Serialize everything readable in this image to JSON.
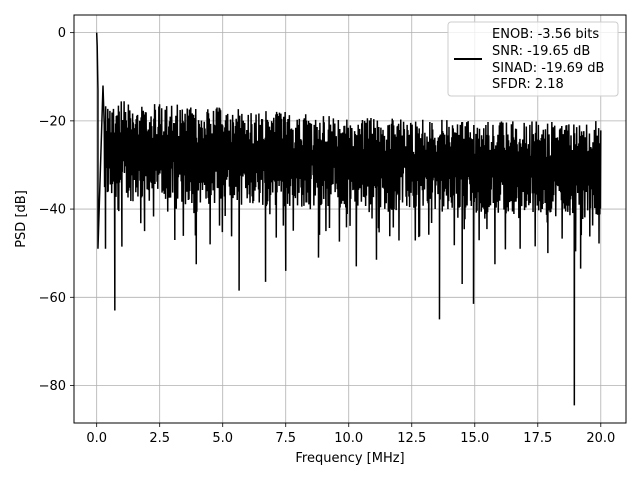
{
  "chart_data": {
    "type": "line",
    "title": "",
    "xlabel": "Frequency [MHz]",
    "ylabel": "PSD [dB]",
    "xlim": [
      -0.9,
      21.0
    ],
    "ylim": [
      -88.5,
      4.0
    ],
    "grid": true,
    "legend_placement": "top-right",
    "x_ticks": [
      0.0,
      2.5,
      5.0,
      7.5,
      10.0,
      12.5,
      15.0,
      17.5,
      20.0
    ],
    "x_tick_labels": [
      "0.0",
      "2.5",
      "5.0",
      "7.5",
      "10.0",
      "12.5",
      "15.0",
      "17.5",
      "20.0"
    ],
    "y_ticks": [
      0,
      -20,
      -40,
      -60,
      -80
    ],
    "y_tick_labels": [
      "0",
      "−20",
      "−40",
      "−60",
      "−80"
    ],
    "series": [
      {
        "name": "ENOB: -3.56 bits\nSNR: -19.65 dB\nSINAD: -19.69 dB\nSFDR: 2.18",
        "legend_lines": [
          "ENOB: -3.56 bits",
          "SNR: -19.65 dB",
          "SINAD: -19.69 dB",
          "SFDR: 2.18"
        ],
        "color": "#000000",
        "x_range": [
          0.0,
          20.0
        ],
        "noise_floor_upper": [
          [
            0.0,
            -15
          ],
          [
            5.0,
            -17
          ],
          [
            10.0,
            -19
          ],
          [
            15.0,
            -20
          ],
          [
            20.0,
            -20
          ]
        ],
        "noise_floor_lower": [
          [
            0.0,
            -38
          ],
          [
            5.0,
            -39
          ],
          [
            10.0,
            -40
          ],
          [
            15.0,
            -41
          ],
          [
            20.0,
            -42
          ]
        ],
        "peaks": [
          [
            0.0,
            0.0
          ],
          [
            0.02,
            -3.0
          ],
          [
            0.05,
            -13.0
          ],
          [
            0.25,
            -12.0
          ]
        ],
        "notable_dips": [
          [
            0.05,
            -49
          ],
          [
            0.35,
            -49
          ],
          [
            0.72,
            -63
          ],
          [
            1.0,
            -48.5
          ],
          [
            1.9,
            -45
          ],
          [
            3.1,
            -47
          ],
          [
            3.95,
            -52.5
          ],
          [
            4.5,
            -48
          ],
          [
            5.65,
            -58.5
          ],
          [
            6.7,
            -56.5
          ],
          [
            7.5,
            -54
          ],
          [
            8.8,
            -51
          ],
          [
            10.3,
            -53
          ],
          [
            11.1,
            -51.5
          ],
          [
            13.6,
            -65
          ],
          [
            14.5,
            -57
          ],
          [
            14.95,
            -61.5
          ],
          [
            15.8,
            -52.5
          ],
          [
            16.8,
            -49
          ],
          [
            17.9,
            -50
          ],
          [
            18.95,
            -84.5
          ],
          [
            19.2,
            -53.5
          ]
        ]
      }
    ]
  }
}
